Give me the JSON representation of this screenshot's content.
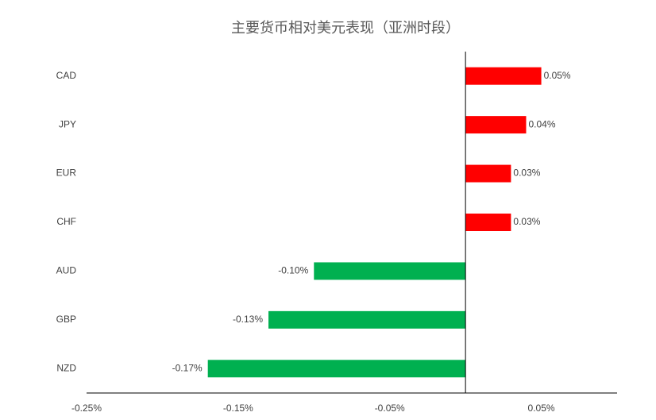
{
  "chart_data": {
    "type": "bar",
    "orientation": "horizontal",
    "title": "主要货币相对美元表现（亚洲时段）",
    "categories": [
      "CAD",
      "JPY",
      "EUR",
      "CHF",
      "AUD",
      "GBP",
      "NZD"
    ],
    "values": [
      0.05,
      0.04,
      0.03,
      0.03,
      -0.1,
      -0.13,
      -0.17
    ],
    "value_labels": [
      "0.05%",
      "0.04%",
      "0.03%",
      "0.03%",
      "-0.10%",
      "-0.13%",
      "-0.17%"
    ],
    "positive_color": "#ff0000",
    "negative_color": "#00b050",
    "xlim": [
      -0.25,
      0.1
    ],
    "xticks": [
      {
        "value": -0.25,
        "label": "-0.25%"
      },
      {
        "value": -0.15,
        "label": "-0.15%"
      },
      {
        "value": -0.05,
        "label": "-0.05%"
      },
      {
        "value": 0.05,
        "label": "0.05%"
      }
    ],
    "grid": false
  }
}
